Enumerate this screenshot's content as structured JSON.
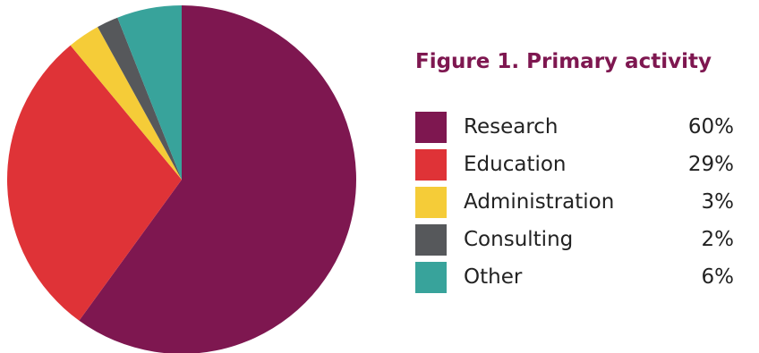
{
  "chart_data": {
    "type": "pie",
    "title": "Figure 1. Primary activity",
    "legend_position": "right",
    "slices": [
      {
        "label": "Research",
        "value": 60,
        "value_label": "60%",
        "color": "#7e1750"
      },
      {
        "label": "Education",
        "value": 29,
        "value_label": "29%",
        "color": "#df3337"
      },
      {
        "label": "Administration",
        "value": 3,
        "value_label": "3%",
        "color": "#f5cc38"
      },
      {
        "label": "Consulting",
        "value": 2,
        "value_label": "2%",
        "color": "#56585b"
      },
      {
        "label": "Other",
        "value": 6,
        "value_label": "6%",
        "color": "#38a39b"
      }
    ]
  }
}
